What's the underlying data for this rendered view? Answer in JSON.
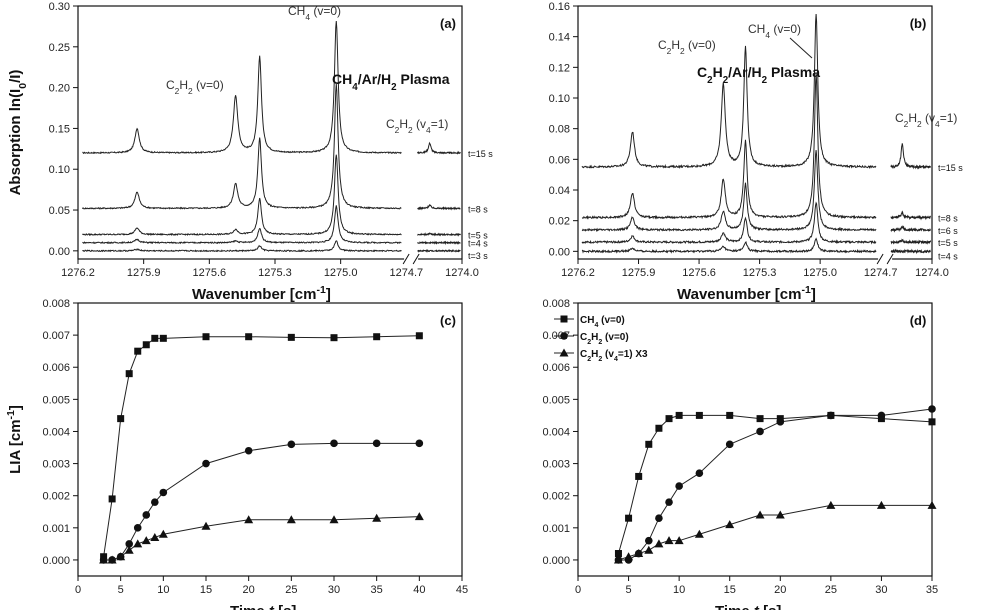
{
  "chart_data": [
    {
      "id": "a",
      "panel_label": "(a)",
      "type": "line",
      "title": "CH4/Ar/H2 Plasma",
      "xlabel": "Wavenumber [cm-1]",
      "ylabel": "Absorption ln(I0/I)",
      "xlim": [
        1276.2,
        1274.0
      ],
      "ylim": [
        -0.01,
        0.3
      ],
      "xticks": [
        "1276.2",
        "1275.9",
        "1275.6",
        "1275.3",
        "1275.0",
        "1274.7",
        "1274.0"
      ],
      "yticks": [
        "0.00",
        "0.05",
        "0.10",
        "0.15",
        "0.20",
        "0.25",
        "0.30"
      ],
      "annotations": [
        "CH4 (v=0)",
        "C2H2 (v=0)",
        "C2H2 (v4=1)"
      ],
      "series": [
        {
          "name": "t=15 s",
          "baseline": 0.12,
          "peaks": [
            [
              1275.93,
              0.03
            ],
            [
              1275.48,
              0.07
            ],
            [
              1275.37,
              0.118
            ],
            [
              1275.02,
              0.162
            ],
            [
              1274.42,
              0.012
            ]
          ]
        },
        {
          "name": "t=8 s",
          "baseline": 0.052,
          "peaks": [
            [
              1275.93,
              0.02
            ],
            [
              1275.48,
              0.03
            ],
            [
              1275.37,
              0.086
            ],
            [
              1275.02,
              0.152
            ],
            [
              1274.42,
              0.004
            ]
          ]
        },
        {
          "name": "t=5 s",
          "baseline": 0.02,
          "peaks": [
            [
              1275.93,
              0.008
            ],
            [
              1275.48,
              0.006
            ],
            [
              1275.37,
              0.044
            ],
            [
              1275.02,
              0.098
            ],
            [
              1274.42,
              0.001
            ]
          ]
        },
        {
          "name": "t=4 s",
          "baseline": 0.01,
          "peaks": [
            [
              1275.93,
              0.004
            ],
            [
              1275.48,
              0.002
            ],
            [
              1275.37,
              0.018
            ],
            [
              1275.02,
              0.045
            ],
            [
              1274.42,
              0.0
            ]
          ]
        },
        {
          "name": "t=3 s",
          "baseline": 0.0,
          "peaks": [
            [
              1275.93,
              0.002
            ],
            [
              1275.48,
              0.0
            ],
            [
              1275.37,
              0.006
            ],
            [
              1275.02,
              0.012
            ],
            [
              1274.42,
              0.0
            ]
          ]
        }
      ]
    },
    {
      "id": "b",
      "panel_label": "(b)",
      "type": "line",
      "title": "C2H2/Ar/H2 Plasma",
      "xlabel": "Wavenumber [cm-1]",
      "ylabel": "",
      "xlim": [
        1276.2,
        1274.0
      ],
      "ylim": [
        -0.005,
        0.16
      ],
      "xticks": [
        "1276.2",
        "1275.9",
        "1275.6",
        "1275.3",
        "1275.0",
        "1274.7",
        "1274.0"
      ],
      "yticks": [
        "0.00",
        "0.02",
        "0.04",
        "0.06",
        "0.08",
        "0.10",
        "0.12",
        "0.14",
        "0.16"
      ],
      "annotations": [
        "C2H2 (v=0)",
        "CH4 (v=0)",
        "C2H2 (v4=1)"
      ],
      "series": [
        {
          "name": "t=15 s",
          "baseline": 0.055,
          "peaks": [
            [
              1275.93,
              0.023
            ],
            [
              1275.48,
              0.054
            ],
            [
              1275.37,
              0.078
            ],
            [
              1275.02,
              0.1
            ],
            [
              1274.42,
              0.015
            ]
          ]
        },
        {
          "name": "t=8 s",
          "baseline": 0.022,
          "peaks": [
            [
              1275.93,
              0.016
            ],
            [
              1275.48,
              0.025
            ],
            [
              1275.37,
              0.05
            ],
            [
              1275.02,
              0.094
            ],
            [
              1274.42,
              0.003
            ]
          ]
        },
        {
          "name": "t=6 s",
          "baseline": 0.014,
          "peaks": [
            [
              1275.93,
              0.008
            ],
            [
              1275.48,
              0.012
            ],
            [
              1275.37,
              0.03
            ],
            [
              1275.02,
              0.052
            ],
            [
              1274.42,
              0.002
            ]
          ]
        },
        {
          "name": "t=5 s",
          "baseline": 0.006,
          "peaks": [
            [
              1275.93,
              0.004
            ],
            [
              1275.48,
              0.006
            ],
            [
              1275.37,
              0.016
            ],
            [
              1275.02,
              0.026
            ],
            [
              1274.42,
              0.001
            ]
          ]
        },
        {
          "name": "t=4 s",
          "baseline": 0.0,
          "peaks": [
            [
              1275.93,
              0.002
            ],
            [
              1275.48,
              0.003
            ],
            [
              1275.37,
              0.006
            ],
            [
              1275.02,
              0.008
            ],
            [
              1274.42,
              0.0
            ]
          ]
        }
      ]
    },
    {
      "id": "c",
      "panel_label": "(c)",
      "type": "line",
      "xlabel": "Time t [s]",
      "ylabel": "LIA [cm-1]",
      "xlim": [
        0,
        45
      ],
      "ylim": [
        -0.0005,
        0.008
      ],
      "xticks": [
        "0",
        "5",
        "10",
        "15",
        "20",
        "25",
        "30",
        "35",
        "40",
        "45"
      ],
      "yticks": [
        "0.000",
        "0.001",
        "0.002",
        "0.003",
        "0.004",
        "0.005",
        "0.006",
        "0.007",
        "0.008"
      ],
      "series": [
        {
          "name": "CH4 (v=0)",
          "marker": "square",
          "x": [
            3,
            4,
            5,
            6,
            7,
            8,
            9,
            10,
            15,
            20,
            25,
            30,
            35,
            40
          ],
          "y": [
            0.0001,
            0.0019,
            0.0044,
            0.0058,
            0.0065,
            0.0067,
            0.0069,
            0.0069,
            0.00695,
            0.00695,
            0.00693,
            0.00692,
            0.00695,
            0.00698
          ]
        },
        {
          "name": "C2H2 (v=0)",
          "marker": "circle",
          "x": [
            3,
            4,
            5,
            6,
            7,
            8,
            9,
            10,
            15,
            20,
            25,
            30,
            35,
            40
          ],
          "y": [
            0.0,
            0.0,
            0.0001,
            0.0005,
            0.001,
            0.0014,
            0.0018,
            0.0021,
            0.003,
            0.0034,
            0.0036,
            0.00363,
            0.00363,
            0.00363
          ]
        },
        {
          "name": "C2H2 (v4=1) X3",
          "marker": "triangle",
          "x": [
            3,
            4,
            5,
            6,
            7,
            8,
            9,
            10,
            15,
            20,
            25,
            30,
            35,
            40
          ],
          "y": [
            0.0,
            0.0,
            0.0001,
            0.0003,
            0.0005,
            0.0006,
            0.0007,
            0.0008,
            0.00105,
            0.00125,
            0.00125,
            0.00125,
            0.0013,
            0.00135
          ]
        }
      ]
    },
    {
      "id": "d",
      "panel_label": "(d)",
      "type": "line",
      "xlabel": "Time t [s]",
      "ylabel": "",
      "xlim": [
        0,
        35
      ],
      "ylim": [
        -0.0005,
        0.008
      ],
      "xticks": [
        "0",
        "5",
        "10",
        "15",
        "20",
        "25",
        "30",
        "35"
      ],
      "yticks": [
        "0.000",
        "0.001",
        "0.002",
        "0.003",
        "0.004",
        "0.005",
        "0.006",
        "0.007",
        "0.008"
      ],
      "legend": {
        "placement": "top-left",
        "entries": [
          "CH4 (v=0)",
          "C2H2 (v=0)",
          "C2H2 (v4=1) X3"
        ]
      },
      "series": [
        {
          "name": "CH4 (v=0)",
          "marker": "square",
          "x": [
            4,
            5,
            6,
            7,
            8,
            9,
            10,
            12,
            15,
            18,
            20,
            25,
            30,
            35
          ],
          "y": [
            0.0002,
            0.0013,
            0.0026,
            0.0036,
            0.0041,
            0.0044,
            0.0045,
            0.0045,
            0.0045,
            0.0044,
            0.0044,
            0.0045,
            0.0044,
            0.0043
          ]
        },
        {
          "name": "C2H2 (v=0)",
          "marker": "circle",
          "x": [
            4,
            5,
            6,
            7,
            8,
            9,
            10,
            12,
            15,
            18,
            20,
            25,
            30,
            35
          ],
          "y": [
            0.0,
            0.0,
            0.0002,
            0.0006,
            0.0013,
            0.0018,
            0.0023,
            0.0027,
            0.0036,
            0.004,
            0.0043,
            0.0045,
            0.0045,
            0.0047
          ]
        },
        {
          "name": "C2H2 (v4=1) X3",
          "marker": "triangle",
          "x": [
            4,
            5,
            6,
            7,
            8,
            9,
            10,
            12,
            15,
            18,
            20,
            25,
            30,
            35
          ],
          "y": [
            0.0,
            0.0001,
            0.0002,
            0.0003,
            0.0005,
            0.0006,
            0.0006,
            0.0008,
            0.0011,
            0.0014,
            0.0014,
            0.0017,
            0.0017,
            0.0017
          ]
        }
      ]
    }
  ]
}
